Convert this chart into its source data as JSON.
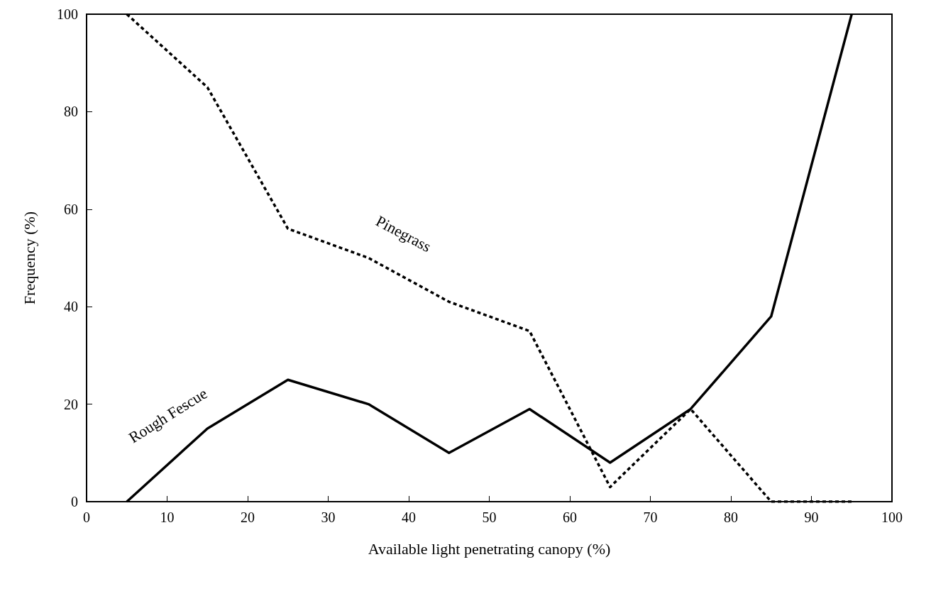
{
  "chart_data": {
    "type": "line",
    "xlabel": "Available light penetrating canopy (%)",
    "ylabel": "Frequency (%)",
    "x": [
      5,
      15,
      25,
      35,
      45,
      55,
      65,
      75,
      85,
      95
    ],
    "series": [
      {
        "name": "Pinegrass",
        "color": "#000000",
        "line_style": "dotted",
        "values": [
          100,
          85,
          56,
          50,
          41,
          35,
          3,
          19,
          0,
          0
        ]
      },
      {
        "name": "Rough Fescue",
        "color": "#000000",
        "line_style": "solid",
        "values": [
          0,
          15,
          25,
          20,
          10,
          19,
          8,
          19,
          38,
          100
        ]
      }
    ],
    "xlim": [
      0,
      100
    ],
    "xticks": [
      0,
      10,
      20,
      30,
      40,
      50,
      60,
      70,
      80,
      90,
      100
    ],
    "ylim": [
      0,
      100
    ],
    "yticks": [
      0,
      20,
      40,
      60,
      80,
      100
    ],
    "grid": false,
    "legend": false,
    "marker": "none"
  }
}
